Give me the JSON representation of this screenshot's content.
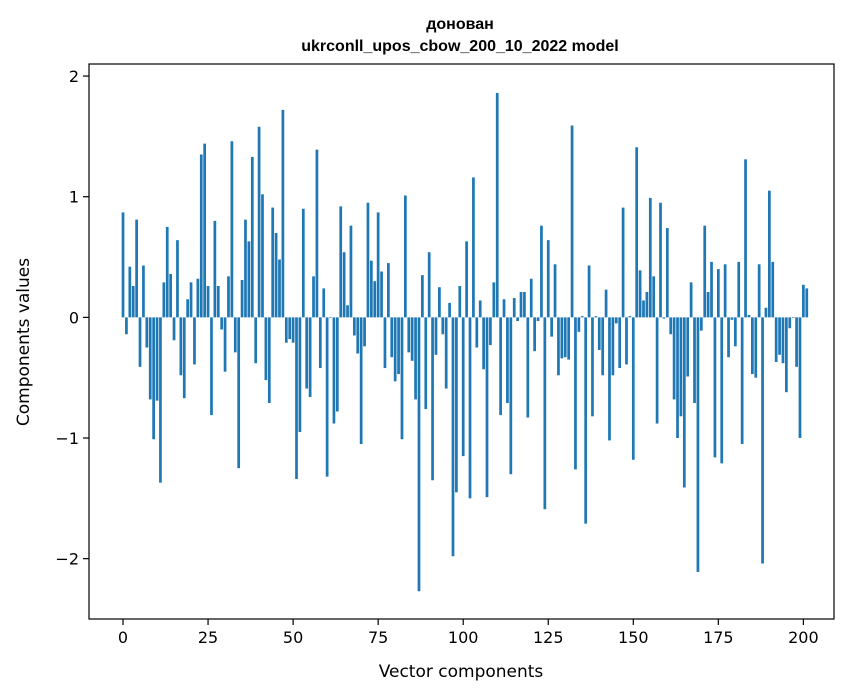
{
  "chart_data": {
    "type": "bar",
    "title_line1": "донован",
    "title_line2": "ukrconll_upos_cbow_200_10_2022 model",
    "xlabel": "Vector components",
    "ylabel": "Components values",
    "xlim": [
      -10,
      209
    ],
    "ylim": [
      -2.5,
      2.1
    ],
    "xticks": [
      0,
      25,
      50,
      75,
      100,
      125,
      150,
      175,
      200
    ],
    "xtick_labels": [
      "0",
      "25",
      "50",
      "75",
      "100",
      "125",
      "150",
      "175",
      "200"
    ],
    "yticks": [
      -2,
      -1,
      0,
      1,
      2
    ],
    "ytick_labels": [
      "−2",
      "−1",
      "0",
      "1",
      "2"
    ],
    "bar_color": "#1f77b4",
    "grid": false,
    "values": [
      0.87,
      -0.14,
      0.42,
      0.26,
      0.81,
      -0.41,
      0.43,
      -0.25,
      -0.68,
      -1.01,
      -0.69,
      -1.37,
      0.29,
      0.75,
      0.36,
      -0.19,
      0.64,
      -0.48,
      -0.67,
      0.15,
      0.29,
      -0.39,
      0.32,
      1.35,
      1.44,
      0.26,
      -0.81,
      0.8,
      0.26,
      -0.1,
      -0.45,
      0.34,
      1.46,
      -0.29,
      -1.25,
      0.31,
      0.81,
      0.63,
      1.33,
      -0.38,
      1.58,
      1.02,
      -0.52,
      -0.71,
      0.91,
      0.7,
      0.48,
      1.72,
      -0.21,
      -0.18,
      -0.21,
      -1.34,
      -0.95,
      0.9,
      -0.59,
      -0.66,
      0.34,
      1.39,
      -0.42,
      0.24,
      -1.32,
      0.0,
      -0.88,
      -0.78,
      0.92,
      0.54,
      0.1,
      0.76,
      -0.15,
      -0.3,
      -1.05,
      -0.24,
      0.95,
      0.47,
      0.3,
      0.87,
      0.38,
      -0.42,
      0.45,
      -0.33,
      -0.53,
      -0.47,
      -1.01,
      1.01,
      -0.29,
      -0.36,
      -0.68,
      -2.27,
      0.35,
      -0.76,
      0.54,
      -1.35,
      -0.31,
      0.25,
      -0.14,
      -0.59,
      0.12,
      -1.98,
      -1.45,
      0.26,
      -1.15,
      0.63,
      -1.5,
      1.16,
      -0.25,
      0.14,
      -0.43,
      -1.49,
      -0.23,
      0.29,
      1.86,
      -0.81,
      0.15,
      -0.71,
      -1.3,
      0.16,
      -0.03,
      0.21,
      0.21,
      -0.83,
      0.32,
      -0.28,
      -0.03,
      0.76,
      -1.59,
      0.64,
      -0.16,
      0.44,
      -0.48,
      -0.34,
      -0.33,
      -0.35,
      1.59,
      -1.26,
      -0.12,
      0.01,
      -1.71,
      0.43,
      -0.82,
      0.01,
      -0.27,
      -0.48,
      0.23,
      -1.02,
      -0.48,
      -0.05,
      -0.42,
      0.91,
      -0.39,
      0.01,
      -1.18,
      1.41,
      0.39,
      0.14,
      0.21,
      0.99,
      0.34,
      -0.88,
      0.95,
      -0.01,
      0.74,
      -0.14,
      -0.68,
      -1.0,
      -0.82,
      -1.41,
      -0.49,
      0.29,
      -0.71,
      -2.11,
      -0.11,
      0.76,
      0.21,
      0.46,
      -1.16,
      0.4,
      -1.21,
      0.44,
      -0.33,
      -0.02,
      -0.24,
      0.46,
      -1.05,
      1.31,
      0.02,
      -0.47,
      -0.5,
      0.44,
      -2.04,
      0.08,
      1.05,
      0.46,
      -0.37,
      -0.31,
      -0.38,
      -0.62,
      -0.09,
      0.0,
      -0.41,
      -1.0,
      0.27,
      0.24
    ]
  }
}
